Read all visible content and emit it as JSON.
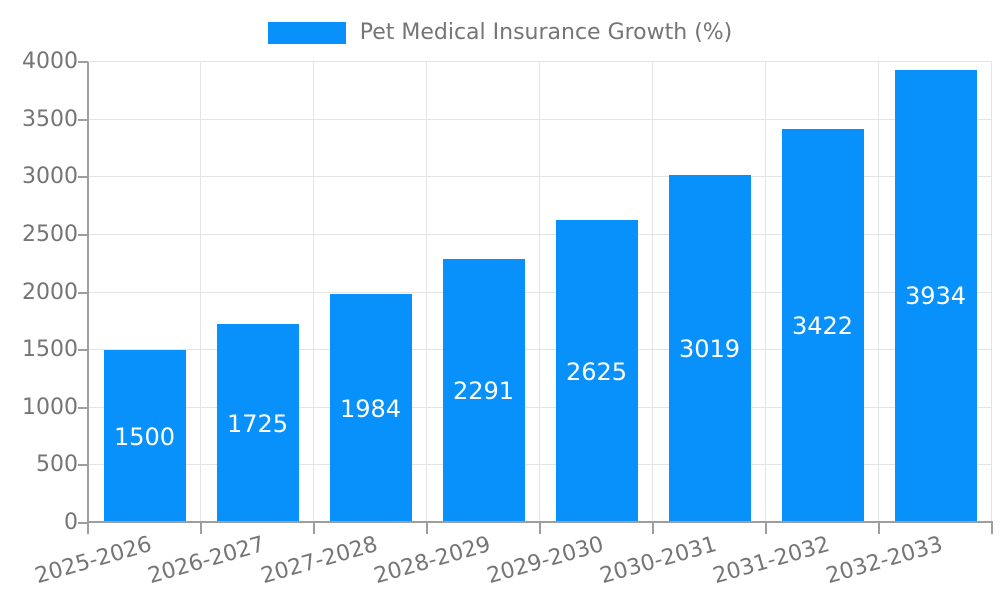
{
  "legend": {
    "series_label": "Pet Medical Insurance Growth (%)"
  },
  "chart_data": {
    "type": "bar",
    "title": "Pet Medical Insurance Growth (%)",
    "categories": [
      "2025-2026",
      "2026-2027",
      "2027-2028",
      "2028-2029",
      "2029-2030",
      "2030-2031",
      "2031-2032",
      "2032-2033"
    ],
    "values": [
      1500,
      1725,
      1984,
      2291,
      2625,
      3019,
      3422,
      3934
    ],
    "bar_labels": [
      "1500",
      "1725",
      "1984",
      "2291",
      "2625",
      "3019",
      "3422",
      "3934"
    ],
    "xlabel": "",
    "ylabel": "",
    "ylim": [
      0,
      4000
    ],
    "yticks": [
      0,
      500,
      1000,
      1500,
      2000,
      2500,
      3000,
      3500,
      4000
    ],
    "grid": true,
    "legend_position": "top-center",
    "x_tick_rotation_deg": -16,
    "colors": {
      "bar": "#0890fb",
      "bar_label": "#ffffff",
      "axis_text": "#757575",
      "grid_line": "#e4e4e4",
      "axis_line": "#9e9e9e",
      "background": "#ffffff"
    }
  }
}
